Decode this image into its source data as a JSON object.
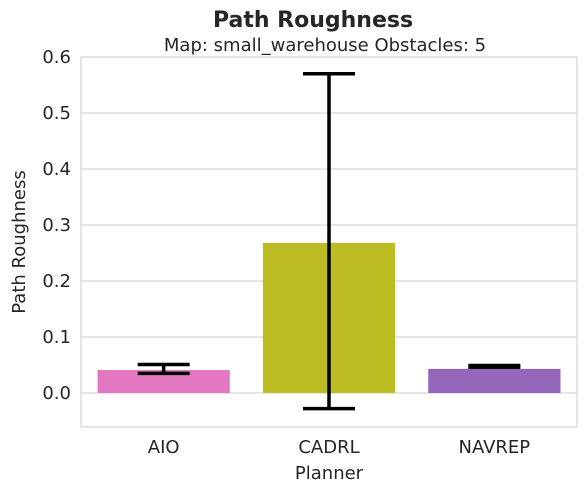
{
  "chart_data": {
    "type": "bar",
    "title": "Path Roughness",
    "subtitle": "Map: small_warehouse Obstacles: 5",
    "xlabel": "Planner",
    "ylabel": "Path Roughness",
    "categories": [
      "AIO",
      "CADRL",
      "NAVREP"
    ],
    "values": [
      0.041,
      0.268,
      0.043
    ],
    "error_low": [
      0.035,
      -0.028,
      0.046
    ],
    "error_high": [
      0.051,
      0.57,
      0.049
    ],
    "colors": [
      "#e377c2",
      "#bcbd22",
      "#9467bd"
    ],
    "error_color": "#000000",
    "ylim": [
      -0.06,
      0.6
    ],
    "yticks": [
      "0.0",
      "0.1",
      "0.2",
      "0.3",
      "0.4",
      "0.5",
      "0.6"
    ],
    "grid": "horizontal",
    "legend": "none"
  }
}
